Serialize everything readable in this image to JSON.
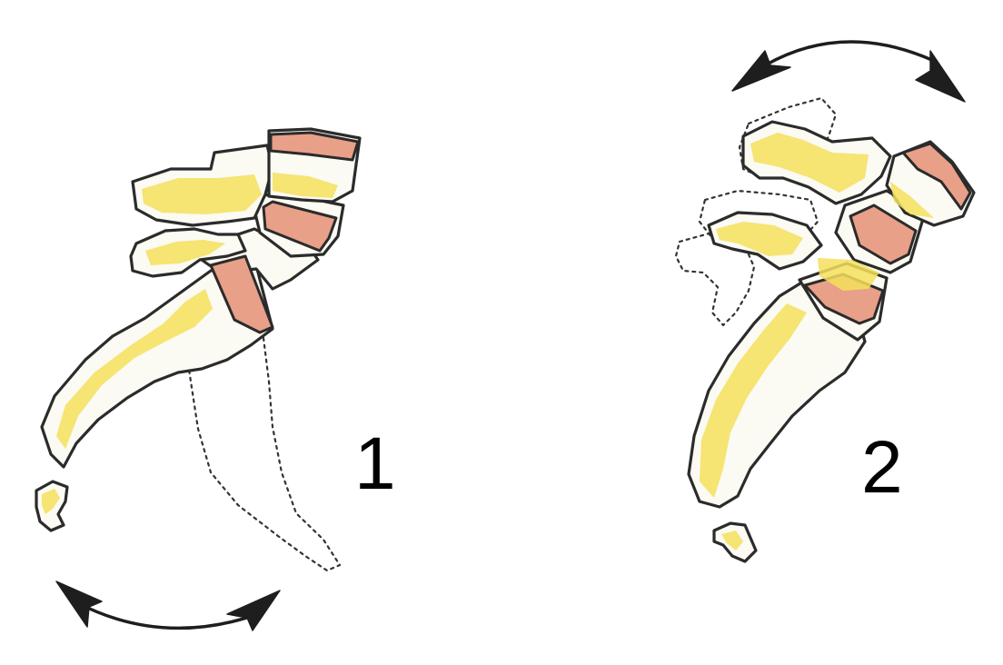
{
  "figures": [
    {
      "label": "1"
    },
    {
      "label": "2"
    }
  ],
  "colors": {
    "bone_fill": "#fbfaf3",
    "bone_tint": "#f5df5c",
    "disc": "#e8a089",
    "outline": "#2b2b2b",
    "arrow": "#1e1e1e"
  }
}
